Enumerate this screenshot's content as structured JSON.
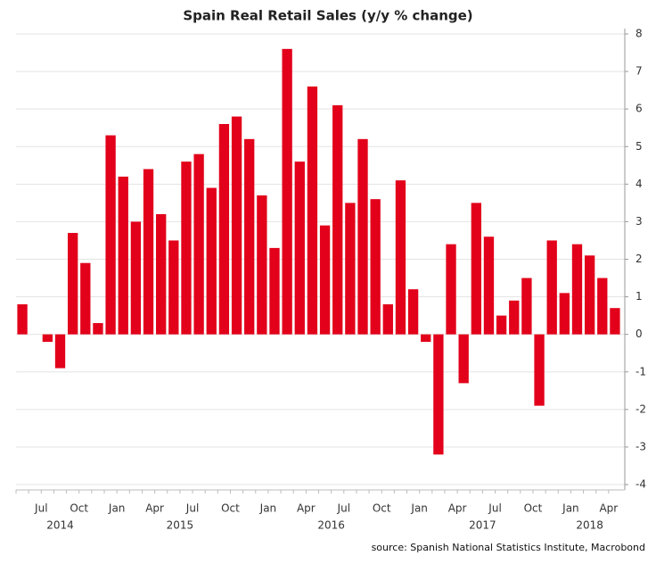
{
  "chart_data": {
    "type": "bar",
    "title": "Spain Real Retail Sales (y/y % change)",
    "source": "source: Spanish National Statistics Institute, Macrobond",
    "categories": [
      null,
      "Jul",
      null,
      null,
      "Oct",
      null,
      null,
      "Jan",
      null,
      null,
      "Apr",
      null,
      null,
      "Jul",
      null,
      null,
      "Oct",
      null,
      null,
      "Jan",
      null,
      null,
      "Apr",
      null,
      null,
      "Jul",
      null,
      null,
      "Oct",
      null,
      null,
      "Jan",
      null,
      null,
      "Apr",
      null,
      null,
      "Jul",
      null,
      null,
      "Oct",
      null,
      null,
      "Jan",
      null,
      null,
      "Apr",
      null
    ],
    "values": [
      0.8,
      0,
      -0.2,
      -0.9,
      2.7,
      1.9,
      0.3,
      5.3,
      4.2,
      3.0,
      4.4,
      3.2,
      2.5,
      4.6,
      4.8,
      3.9,
      5.6,
      5.8,
      5.2,
      3.7,
      2.3,
      7.6,
      4.6,
      6.6,
      2.9,
      6.1,
      3.5,
      5.2,
      3.6,
      0.8,
      4.1,
      1.2,
      -0.2,
      -3.2,
      2.4,
      -1.3,
      3.5,
      2.6,
      0.5,
      0.9,
      1.5,
      -1.9,
      2.5,
      1.1,
      2.4,
      2.1,
      1.5,
      0.7
    ],
    "x_groups": [
      {
        "label": "2014",
        "start": 0,
        "end": 6
      },
      {
        "label": "2015",
        "start": 7,
        "end": 18
      },
      {
        "label": "2016",
        "start": 19,
        "end": 30
      },
      {
        "label": "2017",
        "start": 31,
        "end": 42
      },
      {
        "label": "2018",
        "start": 43,
        "end": 47
      }
    ],
    "color": "#e2001a",
    "ylim": [
      -4,
      8
    ],
    "yticks": [
      -4,
      -3,
      -2,
      -1,
      0,
      1,
      2,
      3,
      4,
      5,
      6,
      7,
      8
    ],
    "grid": true,
    "y_axis_side": "right"
  }
}
